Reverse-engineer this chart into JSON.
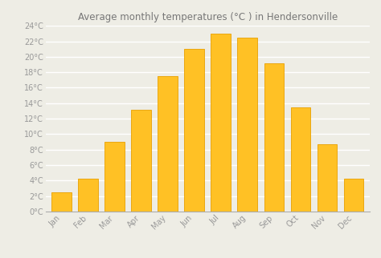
{
  "title": "Average monthly temperatures (°C ) in Hendersonville",
  "months": [
    "Jan",
    "Feb",
    "Mar",
    "Apr",
    "May",
    "Jun",
    "Jul",
    "Aug",
    "Sep",
    "Oct",
    "Nov",
    "Dec"
  ],
  "values": [
    2.5,
    4.2,
    9.0,
    13.2,
    17.5,
    21.0,
    23.0,
    22.5,
    19.2,
    13.5,
    8.7,
    4.3
  ],
  "bar_color": "#FFC125",
  "bar_edge_color": "#E8A000",
  "background_color": "#eeede5",
  "plot_bg_color": "#eeede5",
  "grid_color": "#ffffff",
  "ylim": [
    0,
    24
  ],
  "yticks": [
    0,
    2,
    4,
    6,
    8,
    10,
    12,
    14,
    16,
    18,
    20,
    22,
    24
  ],
  "ytick_labels": [
    "0°C",
    "2°C",
    "4°C",
    "6°C",
    "8°C",
    "10°C",
    "12°C",
    "14°C",
    "16°C",
    "18°C",
    "20°C",
    "22°C",
    "24°C"
  ],
  "title_fontsize": 8.5,
  "tick_fontsize": 7,
  "title_color": "#777777",
  "tick_color": "#999999",
  "bar_width": 0.75
}
